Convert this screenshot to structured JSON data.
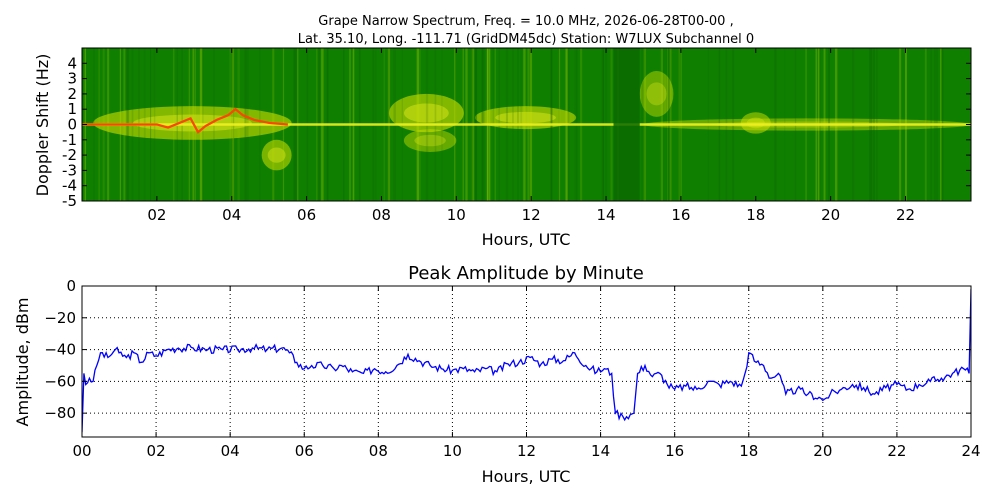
{
  "chart_data": [
    {
      "type": "heatmap",
      "title_line1": "Grape Narrow Spectrum, Freq. = 10.0 MHz, 2026-06-28T00-00 ,",
      "title_line2": "Lat.  35.10, Long. -111.71 (GridDM45dc) Station: W7LUX Subchannel 0",
      "xlabel": "Hours, UTC",
      "ylabel": "Doppler Shift (Hz)",
      "xlim": [
        0,
        23.75
      ],
      "ylim": [
        -5,
        5
      ],
      "x_ticks": [
        2,
        4,
        6,
        8,
        10,
        12,
        14,
        16,
        18,
        20,
        22
      ],
      "x_tick_labels": [
        "02",
        "04",
        "06",
        "08",
        "10",
        "12",
        "14",
        "16",
        "18",
        "20",
        "22"
      ],
      "y_ticks": [
        -5,
        -4,
        -3,
        -2,
        -1,
        0,
        1,
        2,
        3,
        4
      ],
      "y_tick_labels": [
        "-5",
        "-4",
        "-3",
        "-2",
        "-1",
        "0",
        "1",
        "2",
        "3",
        "4"
      ],
      "colors": {
        "background": "#0f7f00",
        "mid": "#cfe000",
        "high": "#f0f020",
        "peak": "#ff4400"
      },
      "carrier_trace": [
        [
          0.0,
          0.0
        ],
        [
          1.0,
          0.0
        ],
        [
          2.0,
          0.0
        ],
        [
          2.3,
          -0.2
        ],
        [
          2.6,
          0.1
        ],
        [
          2.9,
          0.4
        ],
        [
          3.1,
          -0.5
        ],
        [
          3.3,
          -0.1
        ],
        [
          3.6,
          0.3
        ],
        [
          3.9,
          0.6
        ],
        [
          4.1,
          1.0
        ],
        [
          4.3,
          0.6
        ],
        [
          4.6,
          0.3
        ],
        [
          5.0,
          0.1
        ],
        [
          5.5,
          0.0
        ]
      ],
      "signal_regions": [
        {
          "x0": 0.3,
          "x1": 5.6,
          "y0": -1.0,
          "y1": 1.2,
          "level": 0.6
        },
        {
          "x0": 4.8,
          "x1": 5.6,
          "y0": -3.0,
          "y1": -1.0,
          "level": 0.55
        },
        {
          "x0": 8.2,
          "x1": 10.2,
          "y0": -0.5,
          "y1": 2.0,
          "level": 0.6
        },
        {
          "x0": 8.6,
          "x1": 10.0,
          "y0": -1.8,
          "y1": -0.3,
          "level": 0.45
        },
        {
          "x0": 10.5,
          "x1": 13.2,
          "y0": -0.3,
          "y1": 1.2,
          "level": 0.6
        },
        {
          "x0": 14.9,
          "x1": 15.8,
          "y0": 0.5,
          "y1": 3.5,
          "level": 0.45
        },
        {
          "x0": 17.6,
          "x1": 18.4,
          "y0": -0.6,
          "y1": 0.8,
          "level": 0.5
        },
        {
          "x0": 15.0,
          "x1": 23.75,
          "y0": -0.4,
          "y1": 0.4,
          "level": 0.45
        }
      ],
      "dark_gap": {
        "x0": 14.2,
        "x1": 14.9
      }
    },
    {
      "type": "line",
      "title": "Peak Amplitude by Minute",
      "xlabel": "Hours, UTC",
      "ylabel": "Amplitude, dBm",
      "xlim": [
        0,
        24
      ],
      "ylim": [
        -95,
        0
      ],
      "grid": true,
      "x_ticks": [
        0,
        2,
        4,
        6,
        8,
        10,
        12,
        14,
        16,
        18,
        20,
        22,
        24
      ],
      "x_tick_labels": [
        "00",
        "02",
        "04",
        "06",
        "08",
        "10",
        "12",
        "14",
        "16",
        "18",
        "20",
        "22",
        "24"
      ],
      "y_ticks": [
        0,
        -20,
        -40,
        -60,
        -80
      ],
      "y_tick_labels": [
        "0",
        "−20",
        "−40",
        "−60",
        "−80"
      ],
      "line_color": "#0000ff",
      "x": [
        0.0,
        0.05,
        0.1,
        0.2,
        0.3,
        0.4,
        0.5,
        0.7,
        0.9,
        1.0,
        1.2,
        1.4,
        1.6,
        1.8,
        2.0,
        2.3,
        2.6,
        3.0,
        3.4,
        3.8,
        4.2,
        4.6,
        5.0,
        5.4,
        5.6,
        5.8,
        6.0,
        6.2,
        6.5,
        6.8,
        7.0,
        7.3,
        7.6,
        7.9,
        8.2,
        8.5,
        8.8,
        9.1,
        9.4,
        9.7,
        10.0,
        10.3,
        10.6,
        10.9,
        11.2,
        11.5,
        11.8,
        12.1,
        12.4,
        12.7,
        13.0,
        13.3,
        13.6,
        13.9,
        14.1,
        14.3,
        14.4,
        14.6,
        14.8,
        14.9,
        15.0,
        15.2,
        15.4,
        15.6,
        15.8,
        16.0,
        16.3,
        16.6,
        16.9,
        17.2,
        17.5,
        17.8,
        17.9,
        18.0,
        18.2,
        18.4,
        18.6,
        18.8,
        19.0,
        19.3,
        19.6,
        19.9,
        20.0,
        20.2,
        20.5,
        20.8,
        21.1,
        21.4,
        21.7,
        22.0,
        22.3,
        22.6,
        22.9,
        23.2,
        23.5,
        23.8,
        23.95,
        24.0
      ],
      "y": [
        -92,
        -55,
        -62,
        -58,
        -60,
        -50,
        -42,
        -45,
        -40,
        -42,
        -45,
        -42,
        -48,
        -42,
        -44,
        -40,
        -39,
        -39,
        -40,
        -40,
        -40,
        -39,
        -40,
        -39,
        -42,
        -48,
        -52,
        -50,
        -50,
        -52,
        -50,
        -54,
        -55,
        -52,
        -54,
        -50,
        -43,
        -47,
        -50,
        -52,
        -53,
        -52,
        -54,
        -52,
        -54,
        -49,
        -48,
        -45,
        -49,
        -46,
        -47,
        -42,
        -50,
        -54,
        -52,
        -55,
        -80,
        -82,
        -81,
        -80,
        -55,
        -50,
        -57,
        -55,
        -62,
        -65,
        -63,
        -65,
        -60,
        -62,
        -60,
        -63,
        -55,
        -42,
        -48,
        -50,
        -58,
        -55,
        -68,
        -65,
        -68,
        -70,
        -72,
        -68,
        -65,
        -62,
        -64,
        -68,
        -64,
        -62,
        -65,
        -62,
        -60,
        -58,
        -55,
        -52,
        -55,
        -2
      ]
    }
  ]
}
